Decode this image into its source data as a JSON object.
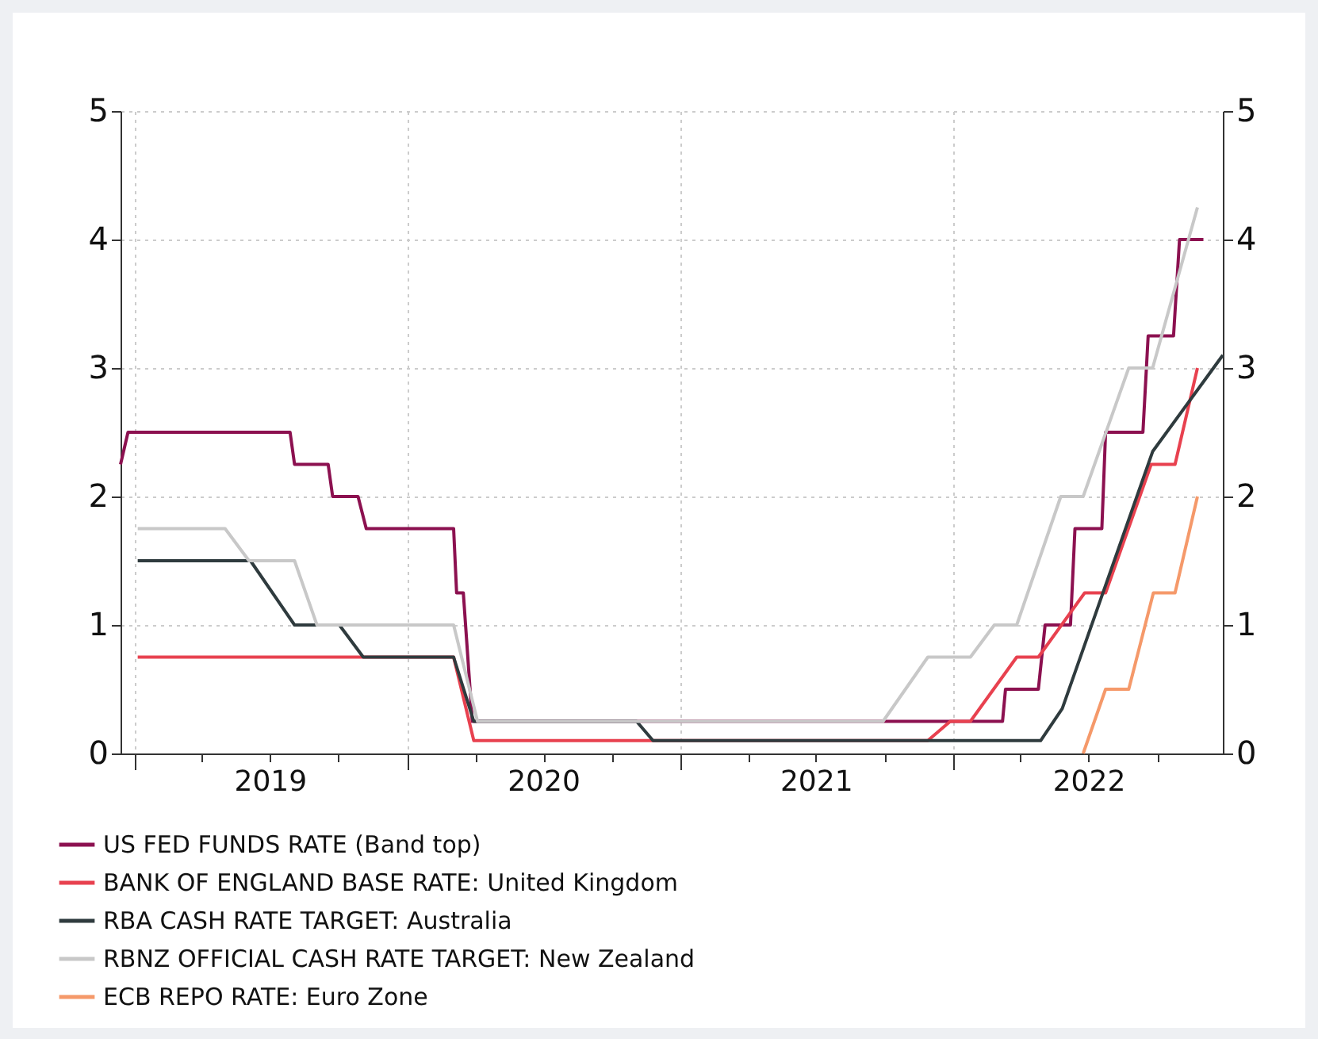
{
  "chart_data": {
    "type": "line",
    "xlim": [
      "2018-12-13",
      "2022-12-28"
    ],
    "xticks": [
      {
        "value": "2019-01-01",
        "label": null
      },
      {
        "value": "2019-04-01",
        "label": null
      },
      {
        "value": "2019-07-01",
        "label": "2019"
      },
      {
        "value": "2019-10-01",
        "label": null
      },
      {
        "value": "2020-01-01",
        "label": null
      },
      {
        "value": "2020-04-01",
        "label": null
      },
      {
        "value": "2020-07-01",
        "label": "2020"
      },
      {
        "value": "2020-10-01",
        "label": null
      },
      {
        "value": "2021-01-01",
        "label": null
      },
      {
        "value": "2021-04-01",
        "label": null
      },
      {
        "value": "2021-07-01",
        "label": "2021"
      },
      {
        "value": "2021-10-01",
        "label": null
      },
      {
        "value": "2022-01-01",
        "label": null
      },
      {
        "value": "2022-04-01",
        "label": null
      },
      {
        "value": "2022-07-01",
        "label": "2022"
      },
      {
        "value": "2022-10-01",
        "label": null
      }
    ],
    "ylim": [
      0,
      5
    ],
    "yticks": [
      0,
      1,
      2,
      3,
      4,
      5
    ],
    "y2lim": [
      0,
      5
    ],
    "y2ticks": [
      0,
      1,
      2,
      3,
      4,
      5
    ],
    "grid": true,
    "legend": "bottom",
    "line_style": "solid",
    "marker": "none",
    "series": [
      {
        "name": "US FED FUNDS RATE (Band top)",
        "color": "#8c1150",
        "x": [
          "2018-12-13",
          "2018-12-23",
          "2019-07-28",
          "2019-08-03",
          "2019-09-17",
          "2019-09-23",
          "2019-10-27",
          "2019-11-07",
          "2020-03-03",
          "2020-03-07",
          "2020-03-16",
          "2020-03-28",
          "2022-03-08",
          "2022-03-12",
          "2022-04-25",
          "2022-05-04",
          "2022-06-07",
          "2022-06-13",
          "2022-07-19",
          "2022-07-24",
          "2022-09-12",
          "2022-09-19",
          "2022-10-23",
          "2022-10-31",
          "2022-12-02"
        ],
        "values": [
          2.25,
          2.5,
          2.5,
          2.25,
          2.25,
          2.0,
          2.0,
          1.75,
          1.75,
          1.25,
          1.25,
          0.25,
          0.25,
          0.5,
          0.5,
          1.0,
          1.0,
          1.75,
          1.75,
          2.5,
          2.5,
          3.25,
          3.25,
          4.0,
          4.0
        ]
      },
      {
        "name": "BANK OF ENGLAND BASE RATE: United Kingdom",
        "color": "#e8414f",
        "x": [
          "2019-01-05",
          "2020-03-03",
          "2020-03-30",
          "2021-11-28",
          "2021-12-28",
          "2022-01-24",
          "2022-03-27",
          "2022-04-25",
          "2022-06-26",
          "2022-07-24",
          "2022-09-23",
          "2022-10-25",
          "2022-11-24"
        ],
        "values": [
          0.75,
          0.75,
          0.1,
          0.1,
          0.25,
          0.25,
          0.75,
          0.75,
          1.25,
          1.25,
          2.25,
          2.25,
          3.0
        ]
      },
      {
        "name": "RBA CASH RATE TARGET: Australia",
        "color": "#2f3b3e",
        "x": [
          "2019-01-05",
          "2019-06-05",
          "2019-08-03",
          "2019-10-02",
          "2019-11-03",
          "2020-03-03",
          "2020-03-30",
          "2020-11-03",
          "2020-11-25",
          "2022-04-28",
          "2022-05-27",
          "2022-09-25",
          "2022-12-28"
        ],
        "values": [
          1.5,
          1.5,
          1.0,
          1.0,
          0.75,
          0.75,
          0.25,
          0.25,
          0.1,
          0.1,
          0.35,
          2.35,
          3.1
        ]
      },
      {
        "name": "RBNZ OFFICIAL CASH RATE TARGET: New Zealand",
        "color": "#c8c8c8",
        "x": [
          "2019-01-05",
          "2019-05-02",
          "2019-06-03",
          "2019-08-03",
          "2019-09-02",
          "2020-03-03",
          "2020-04-04",
          "2021-09-29",
          "2021-11-28",
          "2022-01-24",
          "2022-02-25",
          "2022-03-27",
          "2022-05-25",
          "2022-06-24",
          "2022-08-24",
          "2022-09-25",
          "2022-11-24"
        ],
        "values": [
          1.75,
          1.75,
          1.5,
          1.5,
          1.0,
          1.0,
          0.25,
          0.25,
          0.75,
          0.75,
          1.0,
          1.0,
          2.0,
          2.0,
          3.0,
          3.0,
          4.25
        ]
      },
      {
        "name": "ECB REPO RATE: Euro Zone",
        "color": "#f5996a",
        "x": [
          "2022-06-24",
          "2022-07-24",
          "2022-08-24",
          "2022-09-26",
          "2022-10-25",
          "2022-11-24"
        ],
        "values": [
          0,
          0.5,
          0.5,
          1.25,
          1.25,
          2.0
        ]
      }
    ]
  }
}
